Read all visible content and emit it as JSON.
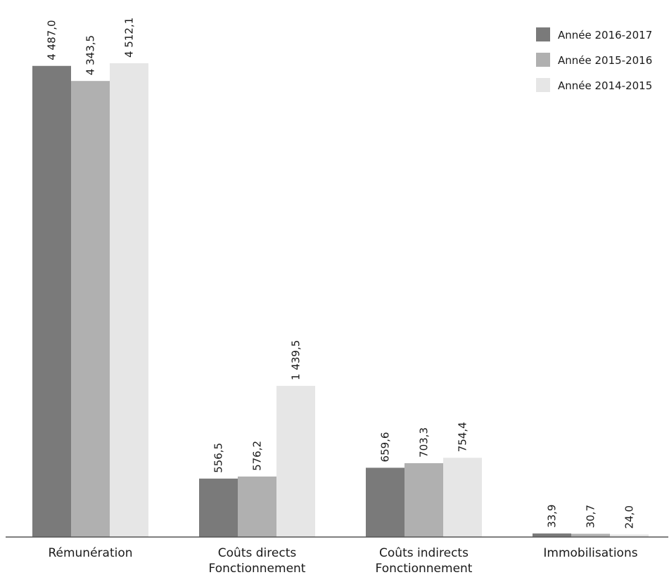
{
  "chart_data": {
    "type": "bar",
    "categories": [
      [
        "Rémunération"
      ],
      [
        "Coûts directs",
        "Fonctionnement"
      ],
      [
        "Coûts indirects",
        "Fonctionnement"
      ],
      [
        "Immobilisations"
      ]
    ],
    "series": [
      {
        "name": "Année 2016-2017",
        "color": "#7a7a7a",
        "values": [
          4487.0,
          556.5,
          659.6,
          33.9
        ],
        "labels": [
          "4 487,0",
          "556,5",
          "659,6",
          "33,9"
        ]
      },
      {
        "name": "Année 2015-2016",
        "color": "#b0b0b0",
        "values": [
          4343.5,
          576.2,
          703.3,
          30.7
        ],
        "labels": [
          "4 343,5",
          "576,2",
          "703,3",
          "30,7"
        ]
      },
      {
        "name": "Année 2014-2015",
        "color": "#e6e6e6",
        "values": [
          4512.1,
          1439.5,
          754.4,
          24.0
        ],
        "labels": [
          "4 512,1",
          "1 439,5",
          "754,4",
          "24,0"
        ]
      }
    ],
    "ylim": [
      0,
      4512.1
    ],
    "grid": false,
    "legend_position": "top-right",
    "title": "",
    "xlabel": "",
    "ylabel": ""
  }
}
